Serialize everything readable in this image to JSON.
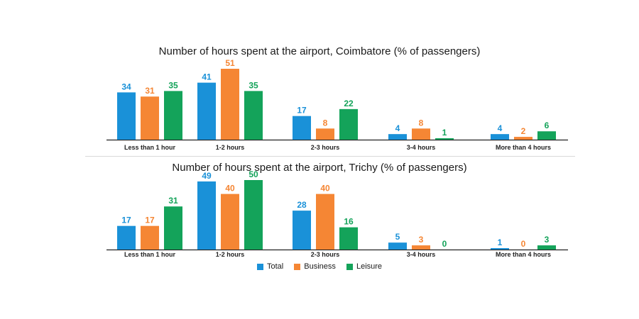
{
  "colors": {
    "Total": "#1a91d8",
    "Business": "#f58634",
    "Leisure": "#14a35a"
  },
  "chart_data": [
    {
      "type": "bar",
      "title": "Number of hours spent at the airport, Coimbatore (% of passengers)",
      "categories": [
        "Less than 1 hour",
        "1-2 hours",
        "2-3 hours",
        "3-4 hours",
        "More than 4 hours"
      ],
      "series": [
        {
          "name": "Total",
          "values": [
            34,
            41,
            17,
            4,
            4
          ]
        },
        {
          "name": "Business",
          "values": [
            31,
            51,
            8,
            8,
            2
          ]
        },
        {
          "name": "Leisure",
          "values": [
            35,
            35,
            22,
            1,
            6
          ]
        }
      ],
      "xlabel": "",
      "ylabel": "",
      "ylim": [
        0,
        51
      ],
      "grid": false,
      "legend": "bottom"
    },
    {
      "type": "bar",
      "title": "Number of hours spent at the airport, Trichy (% of passengers)",
      "categories": [
        "Less than 1 hour",
        "1-2 hours",
        "2-3 hours",
        "3-4 hours",
        "More than 4 hours"
      ],
      "series": [
        {
          "name": "Total",
          "values": [
            17,
            49,
            28,
            5,
            1
          ]
        },
        {
          "name": "Business",
          "values": [
            17,
            40,
            40,
            3,
            0
          ]
        },
        {
          "name": "Leisure",
          "values": [
            31,
            50,
            16,
            0,
            3
          ]
        }
      ],
      "xlabel": "",
      "ylabel": "",
      "ylim": [
        0,
        50
      ],
      "grid": false,
      "legend": "bottom"
    }
  ],
  "legend": {
    "items": [
      "Total",
      "Business",
      "Leisure"
    ]
  }
}
